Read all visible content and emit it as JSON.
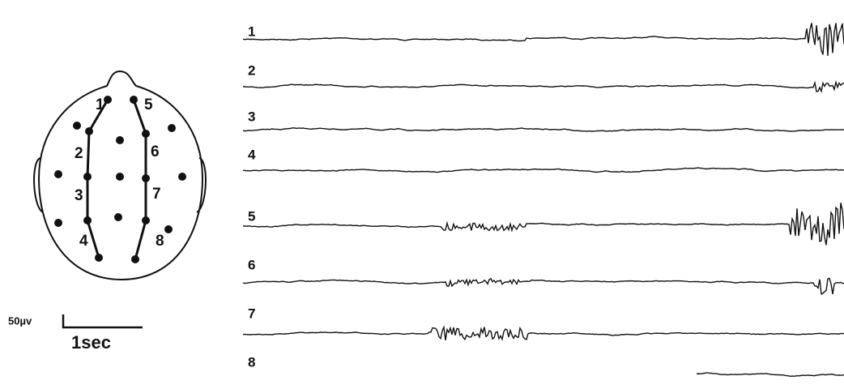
{
  "head": {
    "electrode_labels": [
      "1",
      "2",
      "3",
      "4",
      "5",
      "6",
      "7",
      "8"
    ]
  },
  "traces": {
    "labels": [
      "1",
      "2",
      "3",
      "4",
      "5",
      "6",
      "7",
      "8"
    ]
  },
  "scale": {
    "voltage": "50µv",
    "time": "1sec"
  }
}
